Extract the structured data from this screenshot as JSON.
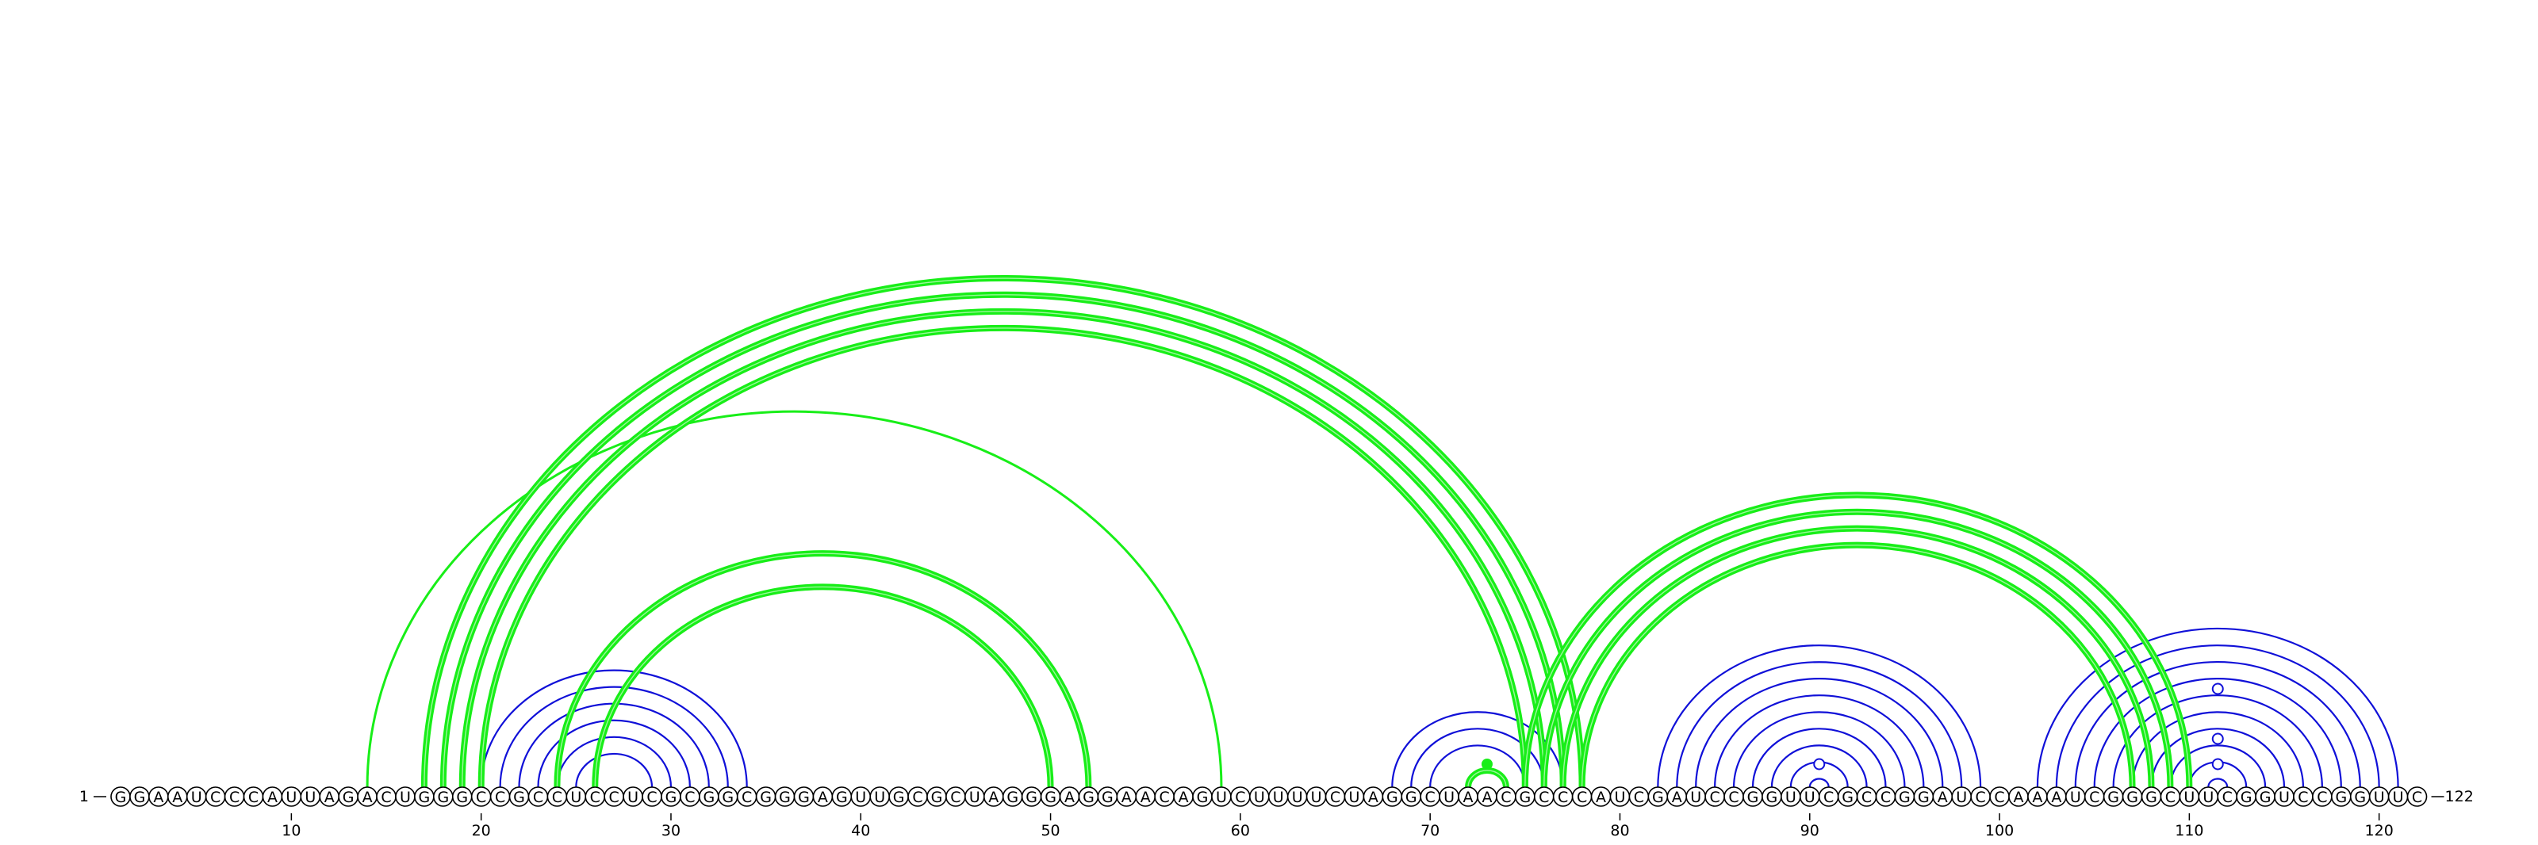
{
  "sequence": "GGAAUCCCAUUAGACUGGGCCGCCUCCUCGCGGCGGGAGUUGCGCUAGGGAGGAACAGUCUUUUCUAGGCUAACGCCCAUCGAUCCGGUUCGCCGGAUCCAAAUCGGGCUUCGGUCCGGUUC",
  "start_label": "1",
  "end_label": "122",
  "ticks": [
    10,
    20,
    30,
    40,
    50,
    60,
    70,
    80,
    90,
    100,
    110,
    120
  ],
  "colors": {
    "blue": "#1010d8",
    "green": "#18ee18",
    "background": "#ffffff"
  },
  "blue_pairs": [
    [
      20,
      34
    ],
    [
      21,
      33
    ],
    [
      22,
      32
    ],
    [
      23,
      31
    ],
    [
      24,
      30
    ],
    [
      25,
      29
    ],
    [
      68,
      77
    ],
    [
      69,
      76
    ],
    [
      70,
      75
    ],
    [
      82,
      99
    ],
    [
      83,
      98
    ],
    [
      84,
      97
    ],
    [
      85,
      96
    ],
    [
      86,
      95
    ],
    [
      87,
      94
    ],
    [
      88,
      93
    ],
    [
      89,
      92
    ],
    [
      90,
      91
    ],
    [
      102,
      121
    ],
    [
      103,
      120
    ],
    [
      104,
      119
    ],
    [
      105,
      118
    ],
    [
      106,
      117
    ],
    [
      107,
      116
    ],
    [
      108,
      115
    ],
    [
      109,
      114
    ],
    [
      110,
      113
    ],
    [
      111,
      112
    ]
  ],
  "green_pairs": [
    {
      "i": 14,
      "j": 59,
      "weight": 1
    },
    {
      "i": 17,
      "j": 78,
      "weight": 2
    },
    {
      "i": 18,
      "j": 77,
      "weight": 2
    },
    {
      "i": 19,
      "j": 76,
      "weight": 2
    },
    {
      "i": 20,
      "j": 75,
      "weight": 2
    },
    {
      "i": 24,
      "j": 52,
      "weight": 2
    },
    {
      "i": 26,
      "j": 50,
      "weight": 2
    },
    {
      "i": 72,
      "j": 74,
      "weight": 2
    },
    {
      "i": 75,
      "j": 110,
      "weight": 2
    },
    {
      "i": 76,
      "j": 109,
      "weight": 2
    },
    {
      "i": 77,
      "j": 108,
      "weight": 2
    },
    {
      "i": 78,
      "j": 107,
      "weight": 2
    }
  ],
  "green_markers": [
    73
  ],
  "blue_markers": [
    90.5,
    111.5,
    111.5,
    111.5
  ]
}
